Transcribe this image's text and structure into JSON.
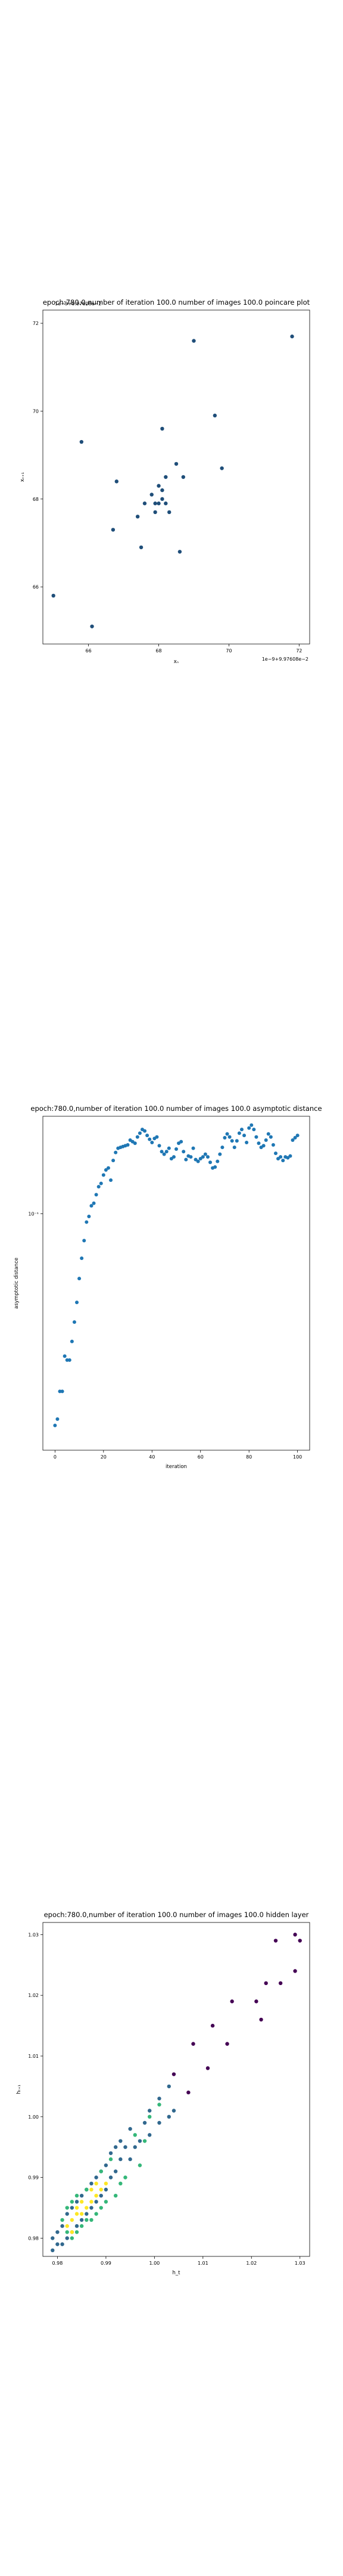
{
  "chart_data": [
    {
      "type": "scatter",
      "title": "epoch:780.0,number of iteration 100.0 number of images 100.0 poincare plot",
      "xlabel": "xₙ",
      "ylabel": "xₙ₊₁",
      "offset_text_x": "1e−9+9.97608e−2",
      "offset_text_y": "1e−9+9.97608e−2",
      "xlim": [
        64.7,
        72.3
      ],
      "ylim": [
        64.7,
        72.3
      ],
      "xticks": [
        66,
        68,
        70,
        72
      ],
      "yticks": [
        66,
        68,
        70,
        72
      ],
      "grid": false,
      "color": "#1f4e79",
      "points": [
        [
          65.0,
          65.8
        ],
        [
          66.1,
          65.1
        ],
        [
          65.8,
          69.3
        ],
        [
          66.8,
          68.4
        ],
        [
          67.4,
          67.6
        ],
        [
          67.6,
          67.9
        ],
        [
          67.8,
          68.1
        ],
        [
          67.9,
          67.7
        ],
        [
          68.0,
          67.9
        ],
        [
          68.0,
          68.3
        ],
        [
          68.1,
          68.0
        ],
        [
          68.1,
          68.2
        ],
        [
          68.2,
          67.9
        ],
        [
          68.2,
          68.5
        ],
        [
          68.3,
          67.7
        ],
        [
          68.1,
          69.6
        ],
        [
          68.5,
          68.8
        ],
        [
          68.6,
          66.8
        ],
        [
          68.7,
          68.5
        ],
        [
          69.0,
          71.6
        ],
        [
          69.6,
          69.9
        ],
        [
          69.8,
          68.7
        ],
        [
          71.8,
          71.7
        ],
        [
          67.5,
          66.9
        ],
        [
          66.7,
          67.3
        ],
        [
          67.9,
          67.9
        ]
      ]
    },
    {
      "type": "scatter",
      "title": "epoch:780.0,number of iteration 100.0  number of images 100.0 asymptotic distance",
      "xlabel": "iteration",
      "ylabel": "asymptotic distance",
      "yscale": "log",
      "xlim": [
        -5,
        105
      ],
      "xticks": [
        0,
        20,
        40,
        60,
        80,
        100
      ],
      "yticks": [
        0.1
      ],
      "ytick_labels": [
        "10⁻¹"
      ],
      "grid": false,
      "color": "#1f77b4",
      "y_at_x0": 0.021,
      "y_at_x1": 0.022,
      "x": [
        0,
        1,
        2,
        3,
        4,
        5,
        6,
        7,
        8,
        9,
        10,
        11,
        12,
        13,
        14,
        15,
        16,
        17,
        18,
        19,
        20,
        21,
        22,
        23,
        24,
        25,
        26,
        27,
        28,
        29,
        30,
        31,
        32,
        33,
        34,
        35,
        36,
        37,
        38,
        39,
        40,
        41,
        42,
        43,
        44,
        45,
        46,
        47,
        48,
        49,
        50,
        51,
        52,
        53,
        54,
        55,
        56,
        57,
        58,
        59,
        60,
        61,
        62,
        63,
        64,
        65,
        66,
        67,
        68,
        69,
        70,
        71,
        72,
        73,
        74,
        75,
        76,
        77,
        78,
        79,
        80,
        81,
        82,
        83,
        84,
        85,
        86,
        87,
        88,
        89,
        90,
        91,
        92,
        93,
        94,
        95,
        96,
        97,
        98,
        99,
        100
      ],
      "y": [
        0.021,
        0.022,
        0.027,
        0.027,
        0.035,
        0.034,
        0.034,
        0.039,
        0.045,
        0.052,
        0.062,
        0.072,
        0.082,
        0.094,
        0.098,
        0.106,
        0.108,
        0.115,
        0.122,
        0.125,
        0.133,
        0.138,
        0.14,
        0.128,
        0.148,
        0.157,
        0.162,
        0.163,
        0.164,
        0.165,
        0.166,
        0.172,
        0.17,
        0.168,
        0.176,
        0.181,
        0.186,
        0.184,
        0.178,
        0.173,
        0.169,
        0.174,
        0.176,
        0.165,
        0.158,
        0.155,
        0.158,
        0.162,
        0.15,
        0.152,
        0.161,
        0.168,
        0.17,
        0.158,
        0.149,
        0.153,
        0.152,
        0.162,
        0.149,
        0.147,
        0.15,
        0.152,
        0.155,
        0.152,
        0.146,
        0.14,
        0.141,
        0.147,
        0.155,
        0.163,
        0.175,
        0.18,
        0.176,
        0.171,
        0.163,
        0.171,
        0.181,
        0.186,
        0.178,
        0.169,
        0.188,
        0.192,
        0.186,
        0.176,
        0.168,
        0.163,
        0.165,
        0.172,
        0.18,
        0.176,
        0.166,
        0.156,
        0.15,
        0.152,
        0.148,
        0.152,
        0.151,
        0.153,
        0.172,
        0.175,
        0.178
      ]
    },
    {
      "type": "scatter",
      "title": "epoch:780.0,number of iteration 100.0  number of images 100.0 hidden layer",
      "xlabel": "h_t",
      "ylabel": "hₜ₊₁",
      "xlim": [
        0.977,
        1.032
      ],
      "ylim": [
        0.977,
        1.032
      ],
      "xticks": [
        0.98,
        0.99,
        1.0,
        1.01,
        1.02,
        1.03
      ],
      "yticks": [
        0.98,
        0.99,
        1.0,
        1.01,
        1.02,
        1.03
      ],
      "xtick_labels": [
        "0.98",
        "0.99",
        "1.00",
        "1.01",
        "1.02",
        "1.03"
      ],
      "ytick_labels": [
        "0.98",
        "0.99",
        "1.00",
        "1.01",
        "1.02",
        "1.03"
      ],
      "grid": false,
      "colormap": [
        "#440154",
        "#31688e",
        "#35b779",
        "#fde725"
      ],
      "points": [
        [
          1.029,
          1.03,
          0
        ],
        [
          1.03,
          1.029,
          0
        ],
        [
          1.025,
          1.029,
          0
        ],
        [
          1.029,
          1.024,
          0
        ],
        [
          1.023,
          1.022,
          0
        ],
        [
          1.026,
          1.022,
          0
        ],
        [
          1.021,
          1.019,
          0
        ],
        [
          1.022,
          1.016,
          0
        ],
        [
          1.016,
          1.019,
          0
        ],
        [
          1.012,
          1.015,
          0
        ],
        [
          1.015,
          1.012,
          0
        ],
        [
          1.008,
          1.012,
          0
        ],
        [
          1.011,
          1.008,
          0
        ],
        [
          1.004,
          1.007,
          0
        ],
        [
          1.007,
          1.004,
          0
        ],
        [
          1.003,
          1.005,
          1
        ],
        [
          1.004,
          1.001,
          1
        ],
        [
          1.001,
          1.003,
          1
        ],
        [
          1.003,
          1.0,
          1
        ],
        [
          0.999,
          1.001,
          1
        ],
        [
          1.001,
          0.999,
          1
        ],
        [
          0.998,
          0.999,
          1
        ],
        [
          0.997,
          0.996,
          1
        ],
        [
          0.999,
          0.997,
          1
        ],
        [
          0.995,
          0.998,
          1
        ],
        [
          0.996,
          0.995,
          1
        ],
        [
          0.994,
          0.995,
          1
        ],
        [
          0.995,
          0.993,
          1
        ],
        [
          0.993,
          0.996,
          1
        ],
        [
          0.993,
          0.993,
          1
        ],
        [
          0.992,
          0.995,
          1
        ],
        [
          0.991,
          0.994,
          1
        ],
        [
          0.992,
          0.991,
          1
        ],
        [
          0.99,
          0.992,
          1
        ],
        [
          0.991,
          0.99,
          1
        ],
        [
          0.989,
          0.991,
          1
        ],
        [
          0.99,
          0.988,
          1
        ],
        [
          0.988,
          0.99,
          1
        ],
        [
          0.989,
          0.987,
          1
        ],
        [
          0.987,
          0.989,
          1
        ],
        [
          0.988,
          0.986,
          1
        ],
        [
          0.986,
          0.988,
          1
        ],
        [
          0.987,
          0.985,
          1
        ],
        [
          0.985,
          0.987,
          1
        ],
        [
          0.986,
          0.984,
          1
        ],
        [
          0.984,
          0.986,
          1
        ],
        [
          0.985,
          0.983,
          1
        ],
        [
          0.983,
          0.985,
          1
        ],
        [
          0.984,
          0.982,
          1
        ],
        [
          0.982,
          0.984,
          1
        ],
        [
          0.983,
          0.981,
          1
        ],
        [
          0.981,
          0.982,
          1
        ],
        [
          0.982,
          0.98,
          1
        ],
        [
          0.98,
          0.981,
          1
        ],
        [
          0.981,
          0.979,
          1
        ],
        [
          0.979,
          0.98,
          1
        ],
        [
          0.98,
          0.979,
          1
        ],
        [
          0.979,
          0.978,
          1
        ],
        [
          0.997,
          0.992,
          2
        ],
        [
          0.998,
          0.996,
          2
        ],
        [
          0.996,
          0.997,
          2
        ],
        [
          0.994,
          0.99,
          2
        ],
        [
          0.993,
          0.989,
          2
        ],
        [
          0.992,
          0.987,
          2
        ],
        [
          0.99,
          0.986,
          2
        ],
        [
          0.989,
          0.985,
          2
        ],
        [
          0.988,
          0.984,
          2
        ],
        [
          0.987,
          0.983,
          2
        ],
        [
          0.986,
          0.983,
          2
        ],
        [
          0.985,
          0.982,
          2
        ],
        [
          0.984,
          0.981,
          2
        ],
        [
          0.983,
          0.98,
          2
        ],
        [
          0.982,
          0.981,
          2
        ],
        [
          0.986,
          0.988,
          2
        ],
        [
          0.984,
          0.987,
          2
        ],
        [
          0.982,
          0.985,
          2
        ],
        [
          0.981,
          0.983,
          2
        ],
        [
          0.983,
          0.986,
          2
        ],
        [
          0.991,
          0.993,
          2
        ],
        [
          0.989,
          0.991,
          2
        ],
        [
          0.999,
          1.0,
          2
        ],
        [
          1.001,
          1.002,
          2
        ],
        [
          0.99,
          0.989,
          3
        ],
        [
          0.989,
          0.988,
          3
        ],
        [
          0.988,
          0.987,
          3
        ],
        [
          0.987,
          0.986,
          3
        ],
        [
          0.986,
          0.985,
          3
        ],
        [
          0.985,
          0.984,
          3
        ],
        [
          0.984,
          0.984,
          3
        ],
        [
          0.983,
          0.983,
          3
        ],
        [
          0.982,
          0.982,
          3
        ],
        [
          0.984,
          0.985,
          3
        ],
        [
          0.983,
          0.981,
          3
        ],
        [
          0.985,
          0.986,
          3
        ],
        [
          0.988,
          0.989,
          3
        ],
        [
          0.987,
          0.988,
          3
        ]
      ]
    }
  ]
}
